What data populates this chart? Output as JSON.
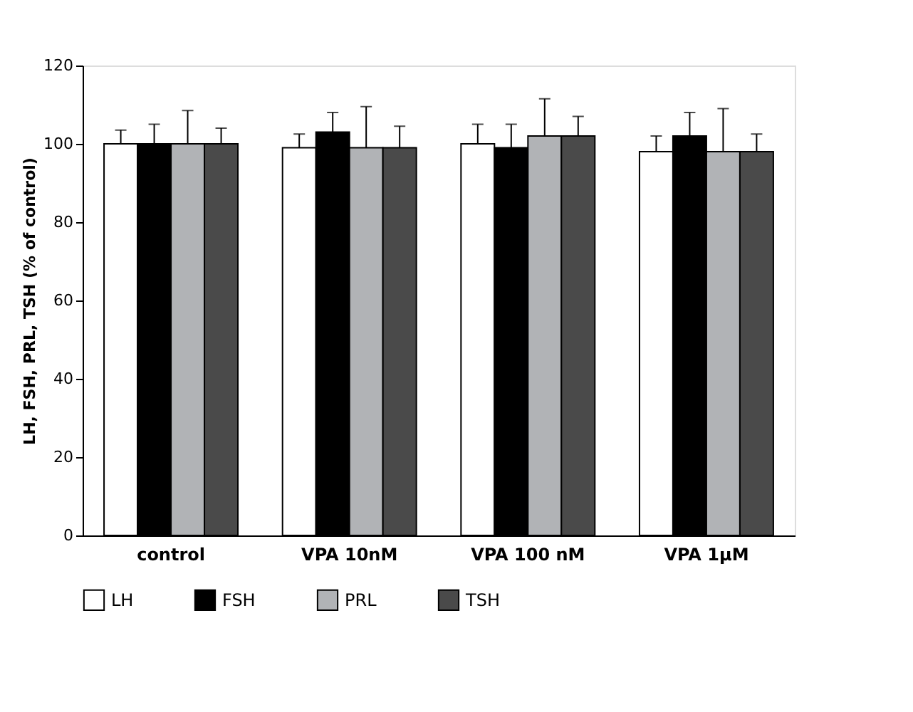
{
  "chart_data": {
    "type": "bar",
    "ylabel": "LH, FSH, PRL, TSH (% of control)",
    "categories": [
      "control",
      "VPA 10nM",
      "VPA 100 nM",
      "VPA 1µM"
    ],
    "series": [
      {
        "name": "LH",
        "color": "#ffffff",
        "values": [
          100,
          99,
          100,
          98
        ],
        "errors": [
          [
            100,
            103.5
          ],
          [
            99,
            102.5
          ],
          [
            100,
            105
          ],
          [
            98,
            102
          ]
        ]
      },
      {
        "name": "FSH",
        "color": "#000000",
        "values": [
          100,
          103,
          99,
          102
        ],
        "errors": [
          [
            100,
            105
          ],
          [
            103,
            108
          ],
          [
            99,
            105
          ],
          [
            102,
            108
          ]
        ]
      },
      {
        "name": "PRL",
        "color": "#b1b3b6",
        "values": [
          100,
          99,
          102,
          98
        ],
        "errors": [
          [
            100,
            108.5
          ],
          [
            99,
            109.5
          ],
          [
            102,
            111.5
          ],
          [
            98,
            109
          ]
        ]
      },
      {
        "name": "TSH",
        "color": "#4a4a4a",
        "values": [
          100,
          99,
          102,
          98
        ],
        "errors": [
          [
            100,
            104
          ],
          [
            99,
            104.5
          ],
          [
            102,
            107
          ],
          [
            98,
            102.5
          ]
        ]
      }
    ],
    "ylim": [
      0,
      120
    ],
    "yticks": [
      0,
      20,
      40,
      60,
      80,
      100,
      120
    ],
    "grid": false,
    "legend": "bottom"
  }
}
